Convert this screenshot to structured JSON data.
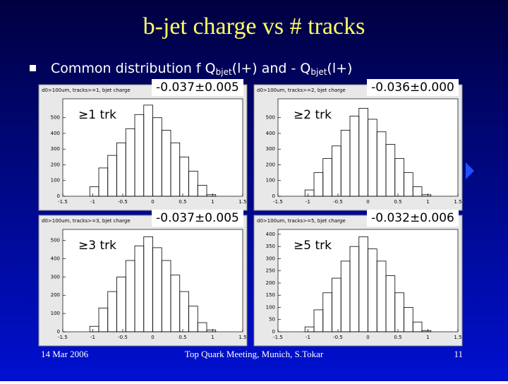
{
  "slide": {
    "title": "b-jet charge vs # tracks",
    "bullet": [
      "Common distribution f Q",
      "bjet",
      "(l+) and - Q",
      "bjet",
      "(l+)"
    ],
    "footer": {
      "date": "14 Mar 2006",
      "event": "Top Quark Meeting, Munich, S.Tokar",
      "page": "11"
    }
  },
  "chart_data": [
    {
      "type": "histogram",
      "title": "d0>100um, tracks>=1, bjet charge",
      "annotation": "-0.037±0.005",
      "label": "≥1 trk",
      "bins": [
        -1.5,
        -1.35,
        -1.2,
        -1.05,
        -0.9,
        -0.75,
        -0.6,
        -0.45,
        -0.3,
        -0.15,
        0,
        0.15,
        0.3,
        0.45,
        0.6,
        0.75,
        0.9,
        1.05,
        1.2,
        1.35,
        1.5
      ],
      "values": [
        0,
        0,
        0,
        60,
        180,
        260,
        340,
        430,
        520,
        580,
        500,
        420,
        340,
        250,
        160,
        70,
        10,
        0,
        0,
        0
      ],
      "xlim": [
        -1.5,
        1.5
      ],
      "xticks": [
        -1.5,
        -1,
        -0.5,
        0,
        0.5,
        1,
        1.5
      ],
      "ylim": [
        0,
        620
      ],
      "yticks": [
        0,
        100,
        200,
        300,
        400,
        500
      ]
    },
    {
      "type": "histogram",
      "title": "d0>100um, tracks>=2, bjet charge",
      "annotation": "-0.036±0.000",
      "label": "≥2 trk",
      "bins": [
        -1.5,
        -1.35,
        -1.2,
        -1.05,
        -0.9,
        -0.75,
        -0.6,
        -0.45,
        -0.3,
        -0.15,
        0,
        0.15,
        0.3,
        0.45,
        0.6,
        0.75,
        0.9,
        1.05,
        1.2,
        1.35,
        1.5
      ],
      "values": [
        0,
        0,
        0,
        40,
        150,
        240,
        320,
        420,
        510,
        560,
        490,
        410,
        330,
        240,
        150,
        60,
        10,
        0,
        0,
        0
      ],
      "xlim": [
        -1.5,
        1.5
      ],
      "xticks": [
        -1.5,
        -1,
        -0.5,
        0,
        0.5,
        1,
        1.5
      ],
      "ylim": [
        0,
        620
      ],
      "yticks": [
        0,
        100,
        200,
        300,
        400,
        500
      ]
    },
    {
      "type": "histogram",
      "title": "d0>100um, tracks>=3, bjet charge",
      "annotation": "-0.037±0.005",
      "label": "≥3 trk",
      "bins": [
        -1.5,
        -1.35,
        -1.2,
        -1.05,
        -0.9,
        -0.75,
        -0.6,
        -0.45,
        -0.3,
        -0.15,
        0,
        0.15,
        0.3,
        0.45,
        0.6,
        0.75,
        0.9,
        1.05,
        1.2,
        1.35,
        1.5
      ],
      "values": [
        0,
        0,
        0,
        30,
        130,
        220,
        300,
        390,
        470,
        520,
        460,
        390,
        310,
        220,
        140,
        50,
        10,
        0,
        0,
        0
      ],
      "xlim": [
        -1.5,
        1.5
      ],
      "xticks": [
        -1.5,
        -1,
        -0.5,
        0,
        0.5,
        1,
        1.5
      ],
      "ylim": [
        0,
        560
      ],
      "yticks": [
        0,
        100,
        200,
        300,
        400,
        500
      ]
    },
    {
      "type": "histogram",
      "title": "d0>100um, tracks>=5, bjet charge",
      "annotation": "-0.032±0.006",
      "label": "≥5 trk",
      "bins": [
        -1.5,
        -1.35,
        -1.2,
        -1.05,
        -0.9,
        -0.75,
        -0.6,
        -0.45,
        -0.3,
        -0.15,
        0,
        0.15,
        0.3,
        0.45,
        0.6,
        0.75,
        0.9,
        1.05,
        1.2,
        1.35,
        1.5
      ],
      "values": [
        0,
        0,
        0,
        20,
        90,
        160,
        220,
        290,
        350,
        390,
        340,
        290,
        230,
        160,
        100,
        40,
        5,
        0,
        0,
        0
      ],
      "xlim": [
        -1.5,
        1.5
      ],
      "xticks": [
        -1.5,
        -1,
        -0.5,
        0,
        0.5,
        1,
        1.5
      ],
      "ylim": [
        0,
        420
      ],
      "yticks": [
        0,
        50,
        100,
        150,
        200,
        250,
        300,
        350,
        400
      ]
    }
  ]
}
